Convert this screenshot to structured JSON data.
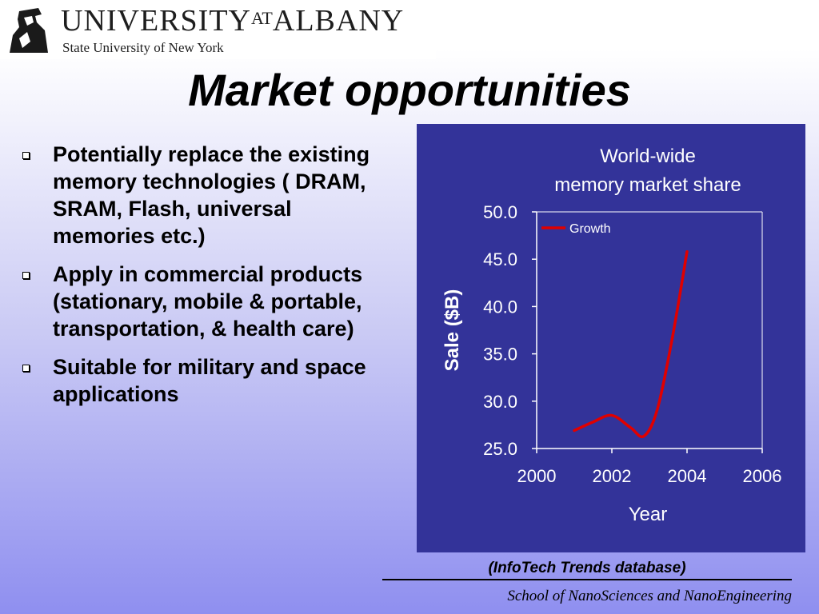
{
  "header": {
    "logo_name": "UNIVERSITY",
    "logo_at": "AT",
    "logo_city": "ALBANY",
    "logo_subtitle": "State University of New York",
    "logo_icon": "minuteman-statue-icon"
  },
  "slide": {
    "title": "Market opportunities",
    "bullets": [
      "Potentially replace the existing memory technologies ( DRAM, SRAM, Flash, universal memories etc.)",
      "Apply in commercial products (stationary, mobile & portable, transportation, & health care)",
      "Suitable for military and space applications"
    ],
    "source": "(InfoTech  Trends database)",
    "footer": "School of NanoSciences and NanoEngineering"
  },
  "chart_data": {
    "type": "line",
    "title_lines": [
      "World-wide",
      "memory market share"
    ],
    "xlabel": "Year",
    "ylabel": "Sale ($B)",
    "xlim": [
      2000,
      2006
    ],
    "ylim": [
      25.0,
      50.0
    ],
    "x_ticks": [
      "2000",
      "2002",
      "2004",
      "2006"
    ],
    "y_ticks": [
      "25.0",
      "30.0",
      "35.0",
      "40.0",
      "45.0",
      "50.0"
    ],
    "legend_position": "top-left",
    "grid": false,
    "series": [
      {
        "name": "Growth",
        "color": "#e00000",
        "x": [
          2001,
          2001.5,
          2002,
          2002.5,
          2002.85,
          2003.2,
          2003.6,
          2004
        ],
        "values": [
          26.9,
          27.8,
          28.5,
          27.2,
          26.3,
          29.0,
          36.5,
          45.8
        ]
      }
    ],
    "colors": {
      "panel": "#333399",
      "text": "#ffffff",
      "axis": "#ffffff"
    }
  }
}
